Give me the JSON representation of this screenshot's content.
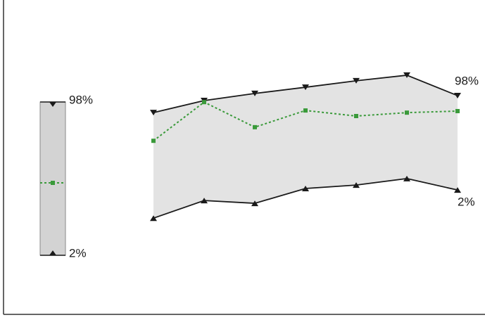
{
  "chart_data": {
    "type": "band",
    "categories": [
      null,
      null,
      null,
      null,
      null,
      null,
      null
    ],
    "ylim": [
      0,
      100
    ],
    "fill": "#e3e3e3",
    "series": [
      {
        "name": "98%",
        "color": "#1a1a1a",
        "marker": "triangle-down",
        "values": [
          63.6,
          67.5,
          69.8,
          71.8,
          73.9,
          75.7,
          69.1
        ]
      },
      {
        "color": "#3a9a3a",
        "marker": "square",
        "dashed": true,
        "values": [
          54.5,
          67.0,
          58.9,
          64.3,
          62.5,
          63.6,
          64.1
        ]
      },
      {
        "name": "2%",
        "color": "#1a1a1a",
        "marker": "triangle-up",
        "values": [
          29.5,
          35.2,
          34.3,
          39.1,
          40.2,
          42.3,
          38.6
        ]
      }
    ]
  }
}
